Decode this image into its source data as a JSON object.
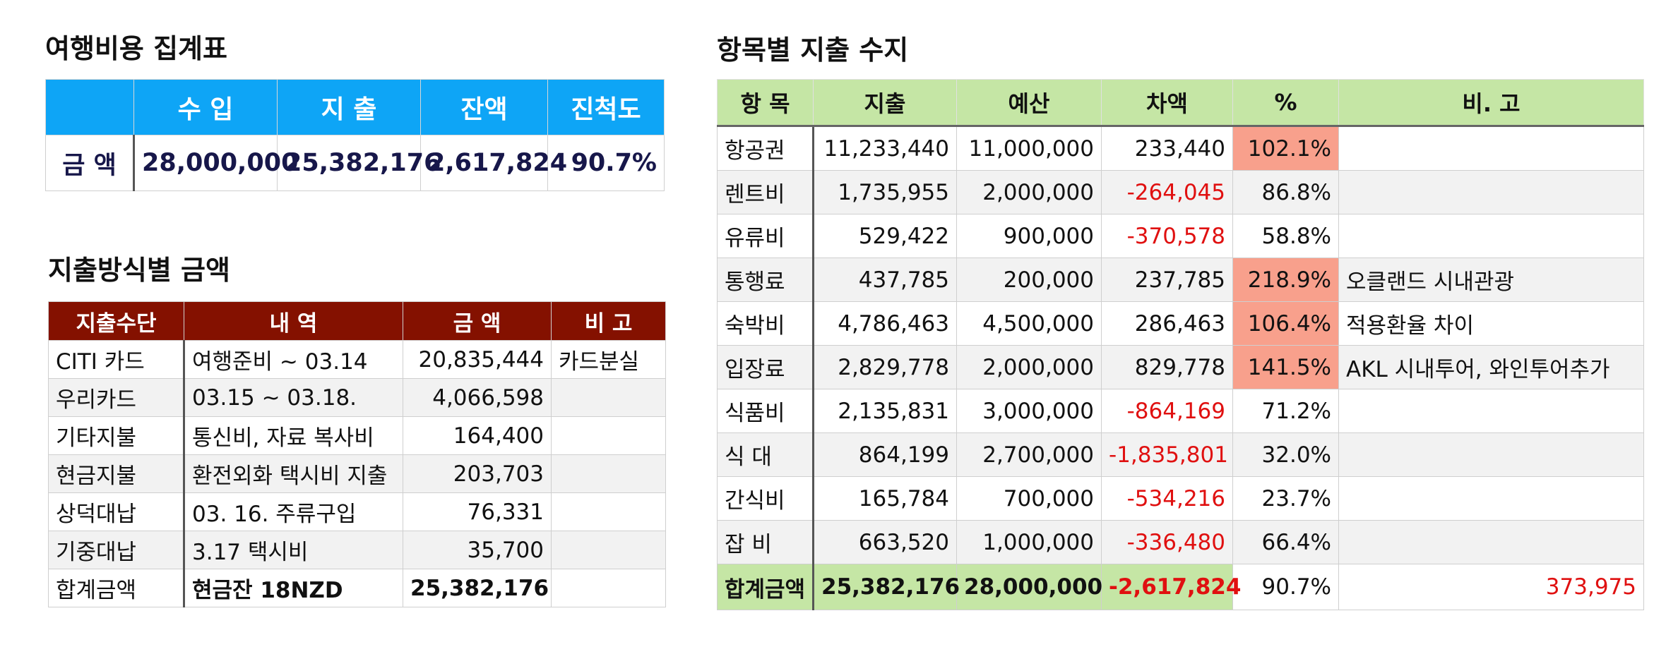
{
  "summary": {
    "title": "여행비용 집계표",
    "headers": [
      "",
      "수 입",
      "지 출",
      "잔액",
      "진척도"
    ],
    "row": {
      "label": "금 액",
      "income": "28,000,000",
      "expense": "25,382,176",
      "balance": "2,617,824",
      "progress": "90.7%"
    }
  },
  "methods": {
    "title": "지출방식별 금액",
    "headers": [
      "지출수단",
      "내 역",
      "금  액",
      "비 고"
    ],
    "rows": [
      {
        "method": "CITI 카드",
        "detail": "여행준비 ~ 03.14",
        "amount": "20,835,444",
        "note": "카드분실"
      },
      {
        "method": "우리카드",
        "detail": "03.15 ~ 03.18.",
        "amount": "4,066,598",
        "note": ""
      },
      {
        "method": "기타지불",
        "detail": "통신비, 자료 복사비",
        "amount": "164,400",
        "note": ""
      },
      {
        "method": "현금지불",
        "detail": "환전외화 택시비 지출",
        "amount": "203,703",
        "note": ""
      },
      {
        "method": "상덕대납",
        "detail": "03. 16. 주류구입",
        "amount": "76,331",
        "note": ""
      },
      {
        "method": "기중대납",
        "detail": "3.17 택시비",
        "amount": "35,700",
        "note": ""
      }
    ],
    "total": {
      "method": "합계금액",
      "detail": "현금잔 18NZD",
      "amount": "25,382,176",
      "note": ""
    }
  },
  "categories": {
    "title": "항목별 지출 수지",
    "headers": [
      "항 목",
      "지출",
      "예산",
      "차액",
      "%",
      "비. 고"
    ],
    "rows": [
      {
        "item": "항공권",
        "spent": "11,233,440",
        "budget": "11,000,000",
        "diff": "233,440",
        "pct": "102.1%",
        "note": ""
      },
      {
        "item": "렌트비",
        "spent": "1,735,955",
        "budget": "2,000,000",
        "diff": "-264,045",
        "pct": "86.8%",
        "note": ""
      },
      {
        "item": "유류비",
        "spent": "529,422",
        "budget": "900,000",
        "diff": "-370,578",
        "pct": "58.8%",
        "note": ""
      },
      {
        "item": "통행료",
        "spent": "437,785",
        "budget": "200,000",
        "diff": "237,785",
        "pct": "218.9%",
        "note": "오클랜드 시내관광"
      },
      {
        "item": "숙박비",
        "spent": "4,786,463",
        "budget": "4,500,000",
        "diff": "286,463",
        "pct": "106.4%",
        "note": "적용환율 차이"
      },
      {
        "item": "입장료",
        "spent": "2,829,778",
        "budget": "2,000,000",
        "diff": "829,778",
        "pct": "141.5%",
        "note": "AKL 시내투어, 와인투어추가"
      },
      {
        "item": "식품비",
        "spent": "2,135,831",
        "budget": "3,000,000",
        "diff": "-864,169",
        "pct": "71.2%",
        "note": ""
      },
      {
        "item": "식   대",
        "spent": "864,199",
        "budget": "2,700,000",
        "diff": "-1,835,801",
        "pct": "32.0%",
        "note": ""
      },
      {
        "item": "간식비",
        "spent": "165,784",
        "budget": "700,000",
        "diff": "-534,216",
        "pct": "23.7%",
        "note": ""
      },
      {
        "item": "잡   비",
        "spent": "663,520",
        "budget": "1,000,000",
        "diff": "-336,480",
        "pct": "66.4%",
        "note": ""
      }
    ],
    "total": {
      "item": "합계금액",
      "spent": "25,382,176",
      "budget": "28,000,000",
      "diff": "-2,617,824",
      "pct": "90.7%",
      "note": "373,975"
    },
    "colors": {
      "header": "#c5e6a5",
      "over_budget": "#f8a08c",
      "negative": "#e01010"
    }
  }
}
